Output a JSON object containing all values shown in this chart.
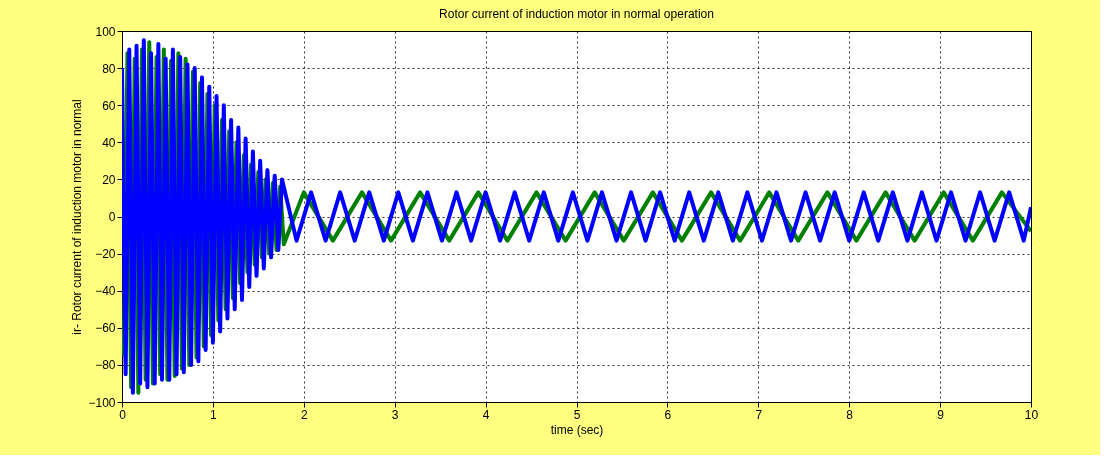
{
  "chart_data": {
    "type": "line",
    "title": "Rotor current of induction motor in normal operation",
    "xlabel": "time (sec)",
    "ylabel": "ir- Rotor current of induction motor in normal",
    "xlim": [
      0,
      10
    ],
    "xticks": [
      0,
      1,
      2,
      3,
      4,
      5,
      6,
      7,
      8,
      9,
      10
    ],
    "ylim": [
      -100,
      100
    ],
    "yticks": [
      -100,
      -80,
      -60,
      -40,
      -20,
      0,
      20,
      40,
      60,
      80,
      100
    ],
    "grid": true,
    "marker": "none",
    "line_style": "solid",
    "series": [
      {
        "color": "#008000",
        "x": [
          0.02,
          0.06,
          0.1,
          0.14,
          0.18,
          0.22,
          0.26,
          0.3,
          0.34,
          0.38,
          0.42,
          0.46,
          0.5,
          0.54,
          0.58,
          0.62,
          0.66,
          0.7,
          0.74,
          0.78,
          0.82,
          0.86,
          0.9,
          0.94,
          0.98,
          1.02,
          1.06,
          1.1,
          1.14,
          1.18,
          1.22,
          1.26,
          1.3,
          1.34,
          1.38,
          1.42,
          1.46,
          1.5,
          1.54,
          1.58,
          1.62,
          1.66,
          1.7,
          1.74,
          1.78,
          2.0,
          2.32,
          2.64,
          2.96,
          3.28,
          3.6,
          3.92,
          4.24,
          4.56,
          4.88,
          5.2,
          5.52,
          5.84,
          6.16,
          6.48,
          6.8,
          7.12,
          7.44,
          7.76,
          8.08,
          8.4,
          8.72,
          9.04,
          9.36,
          9.68,
          10.0
        ],
        "values": [
          -75,
          88,
          -92,
          85,
          -95,
          90,
          -88,
          94,
          -90,
          86,
          -85,
          90,
          -88,
          84,
          -86,
          88,
          -82,
          85,
          -80,
          78,
          -76,
          72,
          -70,
          66,
          -64,
          60,
          -56,
          52,
          -50,
          46,
          -44,
          40,
          -36,
          33,
          -30,
          28,
          -26,
          24,
          -22,
          20,
          -20,
          18,
          -18,
          16,
          -15,
          13,
          -13,
          13,
          -13,
          13,
          -13,
          13,
          -13,
          13,
          -13,
          13,
          -13,
          13,
          -13,
          13,
          -13,
          13,
          -13,
          13,
          -13,
          13,
          -13,
          13,
          -13,
          13,
          -8
        ]
      },
      {
        "color": "#0000ff",
        "x": [
          0,
          0.04,
          0.08,
          0.12,
          0.16,
          0.2,
          0.24,
          0.28,
          0.32,
          0.36,
          0.4,
          0.44,
          0.48,
          0.52,
          0.56,
          0.6,
          0.64,
          0.68,
          0.72,
          0.76,
          0.8,
          0.84,
          0.88,
          0.92,
          0.96,
          1.0,
          1.04,
          1.08,
          1.12,
          1.16,
          1.2,
          1.24,
          1.28,
          1.32,
          1.36,
          1.4,
          1.44,
          1.48,
          1.52,
          1.56,
          1.6,
          1.64,
          1.68,
          1.72,
          1.76,
          1.92,
          2.08,
          2.24,
          2.4,
          2.56,
          2.72,
          2.88,
          3.04,
          3.2,
          3.36,
          3.52,
          3.68,
          3.84,
          4.0,
          4.16,
          4.32,
          4.48,
          4.64,
          4.8,
          4.96,
          5.12,
          5.28,
          5.44,
          5.6,
          5.76,
          5.92,
          6.08,
          6.24,
          6.4,
          6.56,
          6.72,
          6.88,
          7.04,
          7.2,
          7.36,
          7.52,
          7.68,
          7.84,
          8.0,
          8.16,
          8.32,
          8.48,
          8.64,
          8.8,
          8.96,
          9.12,
          9.28,
          9.44,
          9.6,
          9.76,
          9.92,
          10.0
        ],
        "values": [
          80,
          -85,
          90,
          -95,
          92,
          -90,
          95,
          -92,
          88,
          -90,
          93,
          -88,
          85,
          -88,
          90,
          -85,
          86,
          -84,
          82,
          -80,
          80,
          -78,
          75,
          -72,
          70,
          -68,
          65,
          -62,
          60,
          -55,
          52,
          -50,
          48,
          -45,
          42,
          -38,
          35,
          -32,
          30,
          -28,
          25,
          -22,
          22,
          -18,
          20,
          -13,
          13,
          -13,
          13,
          -13,
          13,
          -13,
          13,
          -13,
          13,
          -13,
          13,
          -13,
          13,
          -13,
          13,
          -13,
          13,
          -13,
          13,
          -13,
          13,
          -13,
          13,
          -13,
          13,
          -13,
          13,
          -13,
          13,
          -13,
          13,
          -13,
          13,
          -13,
          13,
          -13,
          13,
          -13,
          13,
          -13,
          13,
          -13,
          13,
          -13,
          13,
          -13,
          13,
          -13,
          13,
          -13,
          5
        ]
      }
    ]
  }
}
